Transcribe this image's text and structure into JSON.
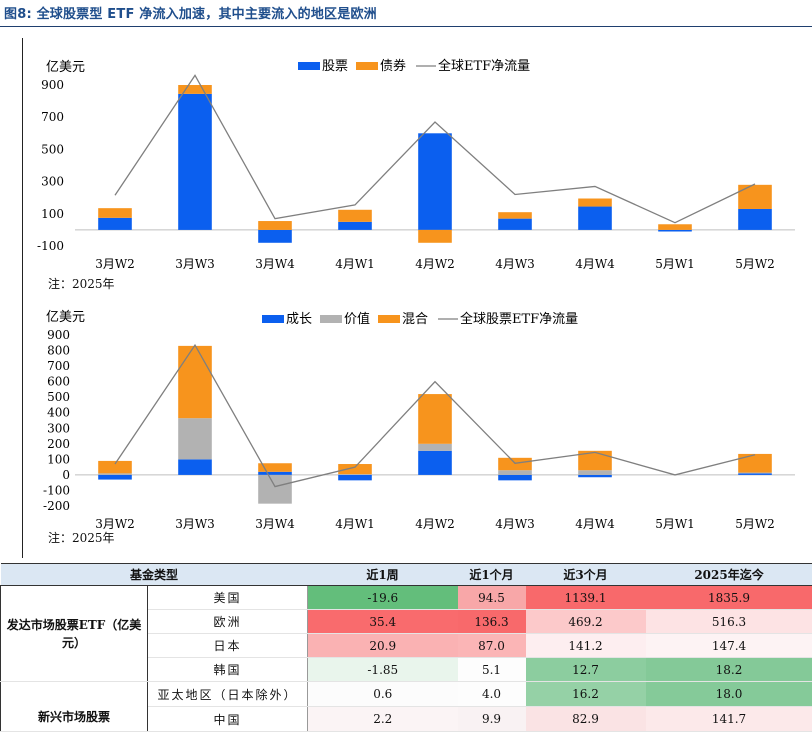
{
  "title": "图8:  全球股票型 ETF 净流入加速，其中主要流入的地区是欧洲",
  "chart_data": [
    {
      "type": "bar",
      "stacked": true,
      "ylabel": "亿美元",
      "ylim": [
        -100,
        900
      ],
      "yticks": [
        -100,
        100,
        300,
        500,
        700,
        900
      ],
      "categories": [
        "3月W2",
        "3月W3",
        "3月W4",
        "4月W1",
        "4月W2",
        "4月W3",
        "4月W4",
        "5月W1",
        "5月W2"
      ],
      "series": [
        {
          "name": "股票",
          "kind": "bar",
          "color": "#0b5fef",
          "values": [
            75,
            845,
            -80,
            50,
            600,
            70,
            145,
            -10,
            130
          ]
        },
        {
          "name": "债券",
          "kind": "bar",
          "color": "#f7941d",
          "values": [
            60,
            55,
            55,
            75,
            -80,
            40,
            50,
            35,
            150
          ]
        },
        {
          "name": "全球ETF净流量",
          "kind": "line",
          "color": "#7f7f7f",
          "values": [
            215,
            960,
            70,
            155,
            670,
            220,
            270,
            45,
            285
          ]
        }
      ],
      "legend_position": "top",
      "note": "注：2025年"
    },
    {
      "type": "bar",
      "stacked": true,
      "ylabel": "亿美元",
      "ylim": [
        -200,
        900
      ],
      "yticks": [
        -200,
        -100,
        0,
        100,
        200,
        300,
        400,
        500,
        600,
        700,
        800,
        900
      ],
      "categories": [
        "3月W2",
        "3月W3",
        "3月W4",
        "4月W1",
        "4月W2",
        "4月W3",
        "4月W4",
        "5月W1",
        "5月W2"
      ],
      "series": [
        {
          "name": "成长",
          "kind": "bar",
          "color": "#0b5fef",
          "values": [
            -30,
            100,
            20,
            -35,
            155,
            -35,
            -15,
            0,
            10
          ]
        },
        {
          "name": "价值",
          "kind": "bar",
          "color": "#b2b2b2",
          "values": [
            10,
            265,
            -185,
            5,
            45,
            30,
            30,
            0,
            5
          ]
        },
        {
          "name": "混合",
          "kind": "bar",
          "color": "#f7941d",
          "values": [
            80,
            465,
            55,
            65,
            320,
            80,
            125,
            0,
            120
          ]
        },
        {
          "name": "全球股票ETF净流量",
          "kind": "line",
          "color": "#7f7f7f",
          "values": [
            70,
            835,
            -75,
            50,
            600,
            75,
            145,
            0,
            130
          ]
        }
      ],
      "legend_position": "top",
      "note": "注：2025年"
    }
  ],
  "table": {
    "headers": [
      "基金类型",
      "",
      "近1周",
      "近1个月",
      "近3个月",
      "2025年迄今"
    ],
    "groups": [
      {
        "name": "发达市场股票ETF（亿美元）",
        "rows": [
          {
            "region": "美国",
            "values": [
              "-19.6",
              "94.5",
              "1139.1",
              "1835.9"
            ],
            "colors": [
              "#63be7b",
              "#f8a7a8",
              "#f8696b",
              "#f8696b"
            ]
          },
          {
            "region": "欧洲",
            "values": [
              "35.4",
              "136.3",
              "469.2",
              "516.3"
            ],
            "colors": [
              "#f96b6d",
              "#f8696b",
              "#fcc9ca",
              "#fde3e4"
            ]
          },
          {
            "region": "日本",
            "values": [
              "20.9",
              "87.0",
              "141.2",
              "147.4"
            ],
            "colors": [
              "#fab2b3",
              "#fbb5b6",
              "#fdeef0",
              "#fdf3f4"
            ]
          },
          {
            "region": "韩国",
            "values": [
              "-1.85",
              "5.1",
              "12.7",
              "18.2"
            ],
            "colors": [
              "#e9f5ec",
              "#fdfdfd",
              "#8ccd9f",
              "#84c998"
            ]
          }
        ]
      },
      {
        "name": "新兴市场股票",
        "rows": [
          {
            "region": "亚太地区（日本除外）",
            "values": [
              "0.6",
              "4.0",
              "16.2",
              "18.0"
            ],
            "colors": [
              "#fcfcfc",
              "#fdfdfd",
              "#95d1a6",
              "#85ca99"
            ]
          },
          {
            "region": "中国",
            "values": [
              "2.2",
              "9.9",
              "82.9",
              "141.7"
            ],
            "colors": [
              "#fbf4f5",
              "#f9f2f3",
              "#fae3e4",
              "#fce9ea"
            ]
          }
        ]
      }
    ]
  }
}
